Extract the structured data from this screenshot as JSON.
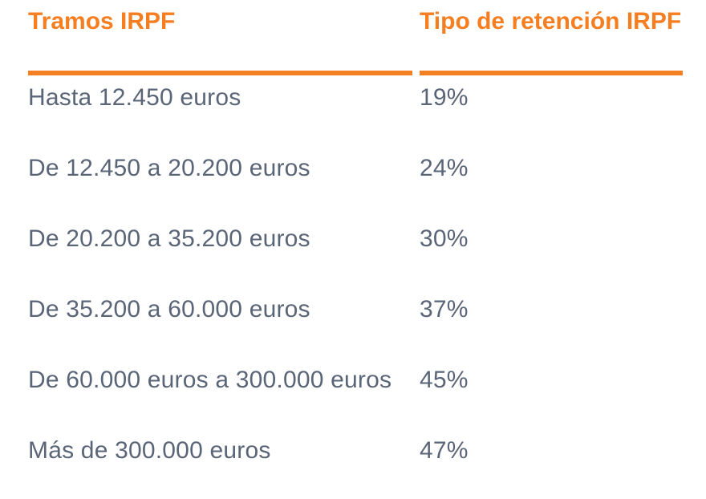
{
  "chart_data": {
    "type": "table",
    "columns": [
      "Tramos IRPF",
      "Tipo de retención IRPF"
    ],
    "rows": [
      {
        "tramo": "Hasta 12.450 euros",
        "tipo": "19%"
      },
      {
        "tramo": "De 12.450 a 20.200 euros",
        "tipo": "24%"
      },
      {
        "tramo": "De 20.200 a 35.200 euros",
        "tipo": "30%"
      },
      {
        "tramo": "De 35.200 a 60.000 euros",
        "tipo": "37%"
      },
      {
        "tramo": "De 60.000 euros a 300.000 euros",
        "tipo": "45%"
      },
      {
        "tramo": "Más de 300.000 euros",
        "tipo": "47%"
      }
    ]
  },
  "colors": {
    "header_text": "#F57E20",
    "divider": "#F57E20",
    "body_text": "#5A6577",
    "background": "#FFFFFF"
  }
}
